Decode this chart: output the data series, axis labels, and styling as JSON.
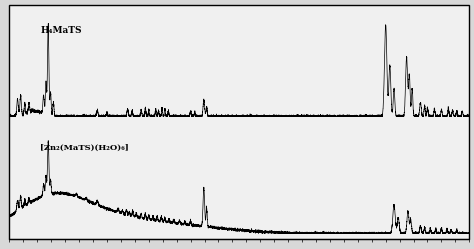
{
  "background_color": "#d8d8d8",
  "panel_bg": "#f0f0f0",
  "border_color": "#000000",
  "label1": "H₄MaTS",
  "label2": "[Zn₂(MaTS)(H₂O)₆]",
  "line_color": "#000000",
  "tick_color": "#000000",
  "figsize": [
    4.74,
    2.49
  ],
  "dpi": 100,
  "x_min": 200,
  "x_max": 3500
}
